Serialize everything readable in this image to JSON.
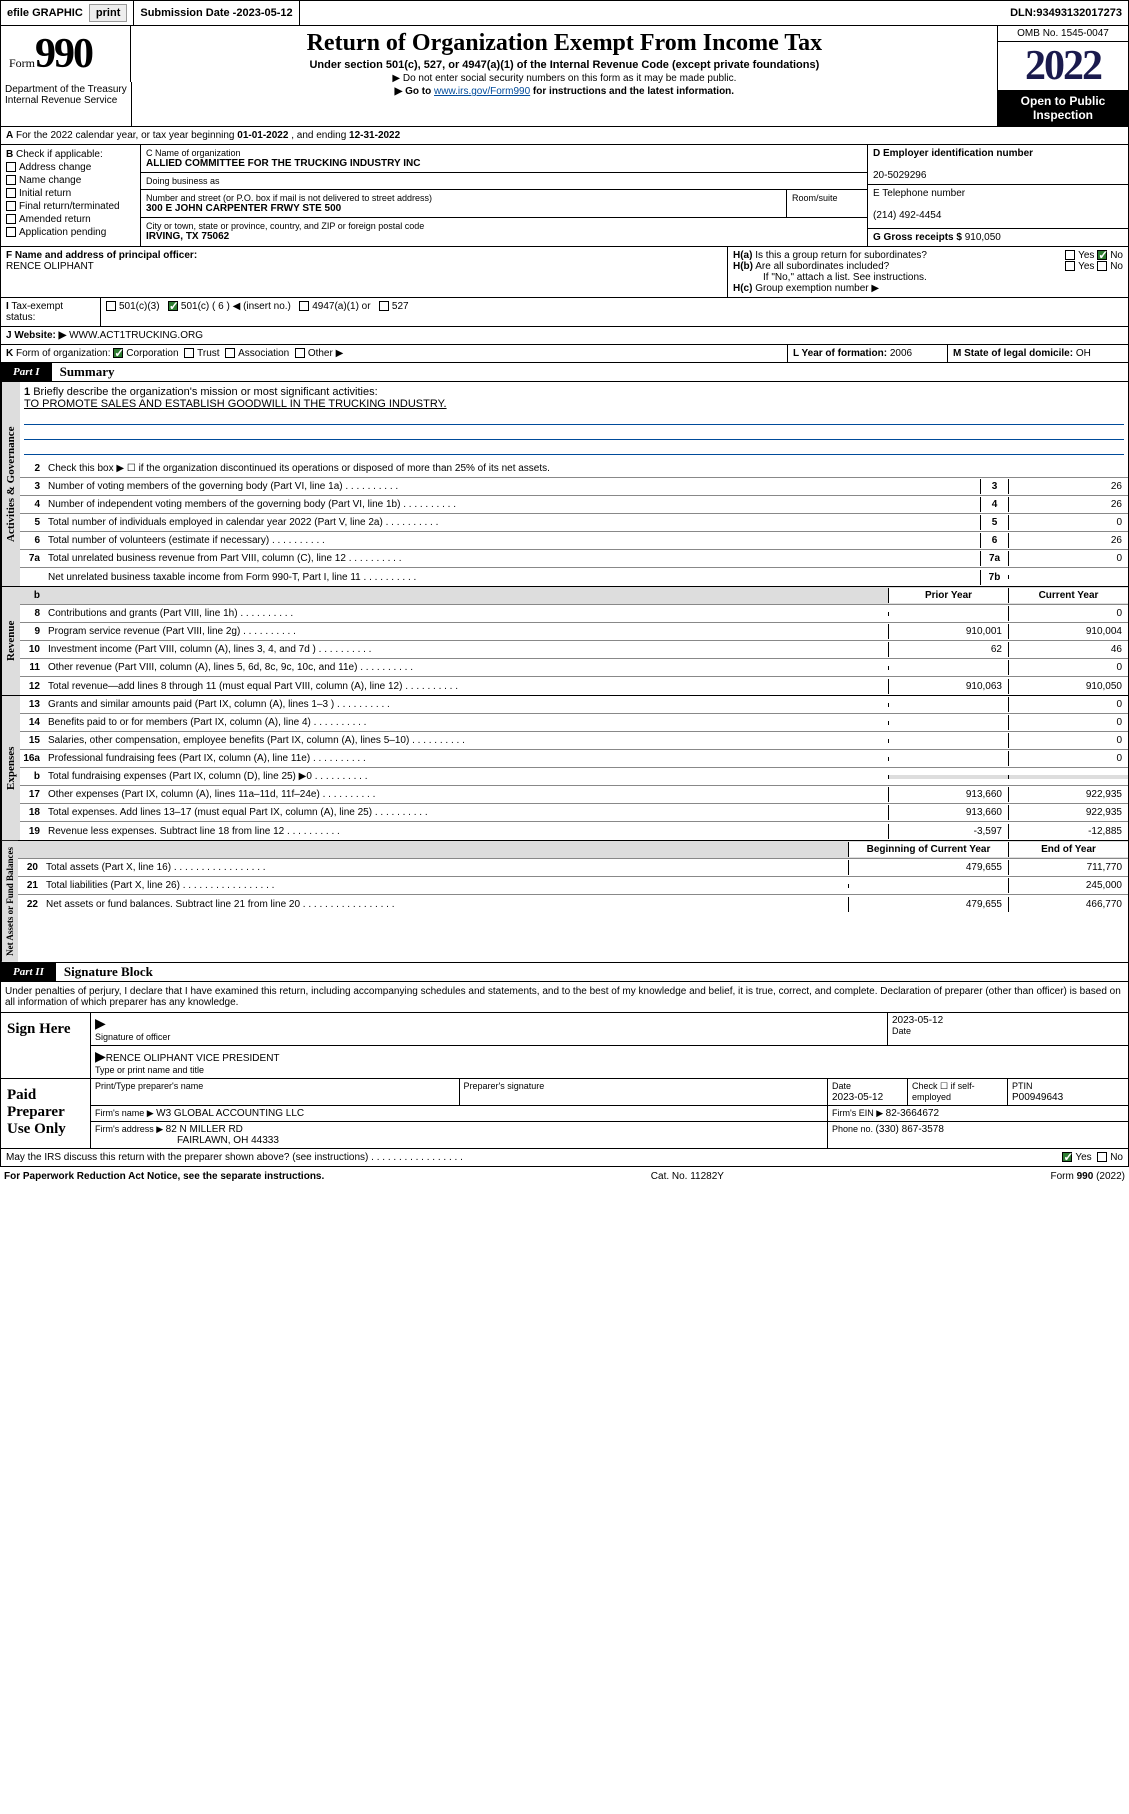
{
  "topbar": {
    "efile": "efile GRAPHIC",
    "print": "print",
    "subdate_label": "Submission Date - ",
    "subdate": "2023-05-12",
    "dln_label": "DLN: ",
    "dln": "93493132017273"
  },
  "header": {
    "form": "Form",
    "num": "990",
    "dept": "Department of the Treasury",
    "irs": "Internal Revenue Service",
    "title": "Return of Organization Exempt From Income Tax",
    "sub": "Under section 501(c), 527, or 4947(a)(1) of the Internal Revenue Code (except private foundations)",
    "note1": "▶ Do not enter social security numbers on this form as it may be made public.",
    "note2_pre": "▶ Go to ",
    "note2_link": "www.irs.gov/Form990",
    "note2_post": " for instructions and the latest information.",
    "omb": "OMB No. 1545-0047",
    "year": "2022",
    "inspection": "Open to Public Inspection"
  },
  "lineA": {
    "text_pre": "For the 2022 calendar year, or tax year beginning ",
    "begin": "01-01-2022",
    "mid": " , and ending ",
    "end": "12-31-2022"
  },
  "checkB": {
    "label": "Check if applicable:",
    "items": [
      "Address change",
      "Name change",
      "Initial return",
      "Final return/terminated",
      "Amended return",
      "Application pending"
    ]
  },
  "org": {
    "name_label": "C Name of organization",
    "name": "ALLIED COMMITTEE FOR THE TRUCKING INDUSTRY INC",
    "dba_label": "Doing business as",
    "street_label": "Number and street (or P.O. box if mail is not delivered to street address)",
    "room_label": "Room/suite",
    "street": "300 E JOHN CARPENTER FRWY STE 500",
    "city_label": "City or town, state or province, country, and ZIP or foreign postal code",
    "city": "IRVING, TX  75062"
  },
  "ein": {
    "label": "D Employer identification number",
    "val": "20-5029296"
  },
  "phone": {
    "label": "E Telephone number",
    "val": "(214) 492-4454"
  },
  "gross": {
    "label": "G Gross receipts $ ",
    "val": "910,050"
  },
  "officer": {
    "label": "F  Name and address of principal officer:",
    "name": "RENCE OLIPHANT"
  },
  "hgroup": {
    "ha": "Is this a group return for subordinates?",
    "hb": "Are all subordinates included?",
    "hb_note": "If \"No,\" attach a list. See instructions.",
    "hc": "Group exemption number ▶",
    "yes": "Yes",
    "no": "No"
  },
  "taxexempt": {
    "label": "Tax-exempt status:",
    "opts": [
      "501(c)(3)",
      "501(c) ( 6 ) ◀ (insert no.)",
      "4947(a)(1) or",
      "527"
    ]
  },
  "website": {
    "label": "Website: ▶",
    "val": "WWW.ACT1TRUCKING.ORG"
  },
  "kform": {
    "label": "Form of organization:",
    "opts": [
      "Corporation",
      "Trust",
      "Association",
      "Other ▶"
    ]
  },
  "lyear": {
    "label": "L Year of formation: ",
    "val": "2006"
  },
  "mstate": {
    "label": "M State of legal domicile: ",
    "val": "OH"
  },
  "part1": {
    "label": "Part I",
    "title": "Summary",
    "tab1": "Activities & Governance",
    "tab2": "Revenue",
    "tab3": "Expenses",
    "tab4": "Net Assets or Fund Balances",
    "l1": "Briefly describe the organization's mission or most significant activities:",
    "l1v": "TO PROMOTE SALES AND ESTABLISH GOODWILL IN THE TRUCKING INDUSTRY.",
    "l2": "Check this box ▶ ☐  if the organization discontinued its operations or disposed of more than 25% of its net assets.",
    "rows_gov": [
      {
        "n": "3",
        "d": "Number of voting members of the governing body (Part VI, line 1a)",
        "b": "3",
        "v": "26"
      },
      {
        "n": "4",
        "d": "Number of independent voting members of the governing body (Part VI, line 1b)",
        "b": "4",
        "v": "26"
      },
      {
        "n": "5",
        "d": "Total number of individuals employed in calendar year 2022 (Part V, line 2a)",
        "b": "5",
        "v": "0"
      },
      {
        "n": "6",
        "d": "Total number of volunteers (estimate if necessary)",
        "b": "6",
        "v": "26"
      },
      {
        "n": "7a",
        "d": "Total unrelated business revenue from Part VIII, column (C), line 12",
        "b": "7a",
        "v": "0"
      },
      {
        "n": "",
        "d": "Net unrelated business taxable income from Form 990-T, Part I, line 11",
        "b": "7b",
        "v": ""
      }
    ],
    "hdr_prior": "Prior Year",
    "hdr_curr": "Current Year",
    "rows_rev": [
      {
        "n": "8",
        "d": "Contributions and grants (Part VIII, line 1h)",
        "p": "",
        "c": "0"
      },
      {
        "n": "9",
        "d": "Program service revenue (Part VIII, line 2g)",
        "p": "910,001",
        "c": "910,004"
      },
      {
        "n": "10",
        "d": "Investment income (Part VIII, column (A), lines 3, 4, and 7d )",
        "p": "62",
        "c": "46"
      },
      {
        "n": "11",
        "d": "Other revenue (Part VIII, column (A), lines 5, 6d, 8c, 9c, 10c, and 11e)",
        "p": "",
        "c": "0"
      },
      {
        "n": "12",
        "d": "Total revenue—add lines 8 through 11 (must equal Part VIII, column (A), line 12)",
        "p": "910,063",
        "c": "910,050"
      }
    ],
    "rows_exp": [
      {
        "n": "13",
        "d": "Grants and similar amounts paid (Part IX, column (A), lines 1–3 )",
        "p": "",
        "c": "0"
      },
      {
        "n": "14",
        "d": "Benefits paid to or for members (Part IX, column (A), line 4)",
        "p": "",
        "c": "0"
      },
      {
        "n": "15",
        "d": "Salaries, other compensation, employee benefits (Part IX, column (A), lines 5–10)",
        "p": "",
        "c": "0"
      },
      {
        "n": "16a",
        "d": "Professional fundraising fees (Part IX, column (A), line 11e)",
        "p": "",
        "c": "0"
      },
      {
        "n": "b",
        "d": "Total fundraising expenses (Part IX, column (D), line 25) ▶0",
        "p": "",
        "c": ""
      },
      {
        "n": "17",
        "d": "Other expenses (Part IX, column (A), lines 11a–11d, 11f–24e)",
        "p": "913,660",
        "c": "922,935"
      },
      {
        "n": "18",
        "d": "Total expenses. Add lines 13–17 (must equal Part IX, column (A), line 25)",
        "p": "913,660",
        "c": "922,935"
      },
      {
        "n": "19",
        "d": "Revenue less expenses. Subtract line 18 from line 12",
        "p": "-3,597",
        "c": "-12,885"
      }
    ],
    "hdr_begin": "Beginning of Current Year",
    "hdr_end": "End of Year",
    "rows_net": [
      {
        "n": "20",
        "d": "Total assets (Part X, line 16)",
        "p": "479,655",
        "c": "711,770"
      },
      {
        "n": "21",
        "d": "Total liabilities (Part X, line 26)",
        "p": "",
        "c": "245,000"
      },
      {
        "n": "22",
        "d": "Net assets or fund balances. Subtract line 21 from line 20",
        "p": "479,655",
        "c": "466,770"
      }
    ]
  },
  "part2": {
    "label": "Part II",
    "title": "Signature Block",
    "decl": "Under penalties of perjury, I declare that I have examined this return, including accompanying schedules and statements, and to the best of my knowledge and belief, it is true, correct, and complete. Declaration of preparer (other than officer) is based on all information of which preparer has any knowledge.",
    "sign_here": "Sign Here",
    "sig_officer": "Signature of officer",
    "sig_date": "2023-05-12",
    "date_label": "Date",
    "officer_name": "RENCE OLIPHANT  VICE PRESIDENT",
    "type_name": "Type or print name and title",
    "paid": "Paid Preparer Use Only",
    "prep_name_label": "Print/Type preparer's name",
    "prep_sig_label": "Preparer's signature",
    "prep_date": "2023-05-12",
    "check_self": "Check ☐ if self-employed",
    "ptin_label": "PTIN",
    "ptin": "P00949643",
    "firm_name_label": "Firm's name    ▶ ",
    "firm_name": "W3 GLOBAL ACCOUNTING LLC",
    "firm_ein_label": "Firm's EIN ▶ ",
    "firm_ein": "82-3664672",
    "firm_addr_label": "Firm's address ▶ ",
    "firm_addr": "82 N MILLER RD",
    "firm_addr2": "FAIRLAWN, OH  44333",
    "firm_phone_label": "Phone no. ",
    "firm_phone": "(330) 867-3578",
    "may_discuss": "May the IRS discuss this return with the preparer shown above? (see instructions)"
  },
  "footer": {
    "l": "For Paperwork Reduction Act Notice, see the separate instructions.",
    "c": "Cat. No. 11282Y",
    "r": "Form 990 (2022)"
  }
}
